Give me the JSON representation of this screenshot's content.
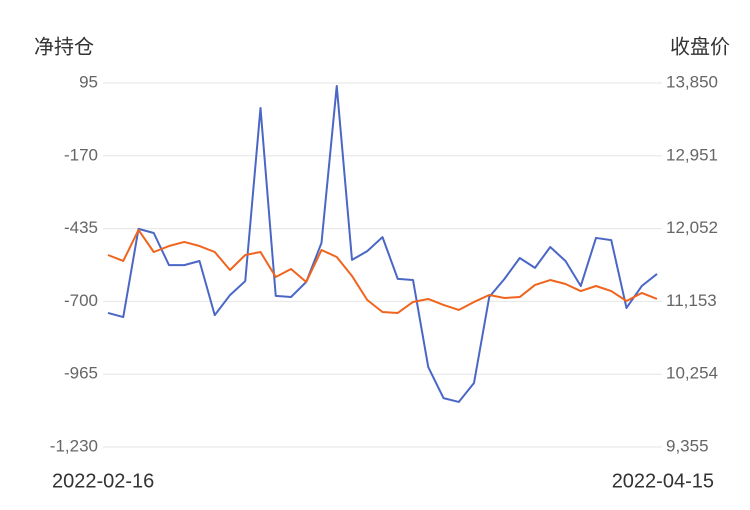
{
  "chart_data": {
    "type": "line",
    "y_title": "净持仓",
    "y2_title": "收盘价",
    "categories": [
      "2022-02-16",
      null,
      null,
      null,
      null,
      null,
      null,
      null,
      null,
      null,
      null,
      null,
      null,
      null,
      null,
      null,
      null,
      null,
      null,
      null,
      null,
      null,
      null,
      null,
      null,
      null,
      null,
      null,
      null,
      null,
      null,
      null,
      null,
      null,
      null,
      null,
      "2022-04-15"
    ],
    "ylim": [
      -1230,
      95
    ],
    "yticks": [
      95,
      -170,
      -435,
      -700,
      -965,
      {
        "value": -1230,
        "label": "-1,230"
      }
    ],
    "y2lim": [
      9355,
      13850
    ],
    "y2ticks": [
      {
        "value": 13850,
        "label": "13,850"
      },
      {
        "value": 12951,
        "label": "12,951"
      },
      {
        "value": 12052,
        "label": "12,052"
      },
      {
        "value": 11153,
        "label": "11,153"
      },
      {
        "value": 10254,
        "label": "10,254"
      },
      {
        "value": 9355,
        "label": "9,355"
      }
    ],
    "grid": true,
    "series": [
      {
        "color": "#4a67c6",
        "values": [
          -742,
          -757,
          -436,
          -451,
          -568,
          -568,
          -553,
          -750,
          -677,
          -626,
          4,
          -680,
          -684,
          -629,
          -487,
          84,
          -549,
          -517,
          -466,
          -618,
          -622,
          -939,
          -1052,
          -1066,
          -997,
          -684,
          -618,
          -542,
          -578,
          -502,
          -553,
          -644,
          -469,
          -477,
          -724,
          -644,
          -600
        ]
      },
      {
        "color": "#f0641e",
        "axis": "y2",
        "values": [
          11726,
          11652,
          12035,
          11763,
          11837,
          11887,
          11837,
          11763,
          11541,
          11726,
          11763,
          11454,
          11553,
          11393,
          11788,
          11701,
          11467,
          11170,
          11022,
          11010,
          11146,
          11183,
          11109,
          11047,
          11146,
          11232,
          11195,
          11207,
          11356,
          11417,
          11368,
          11281,
          11343,
          11281,
          11158,
          11257,
          11183
        ]
      }
    ]
  }
}
